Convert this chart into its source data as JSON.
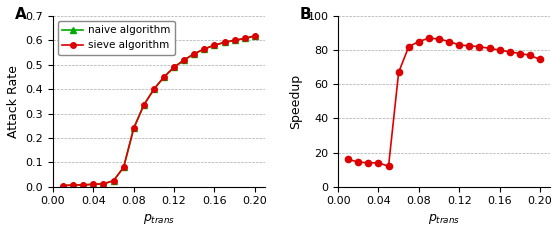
{
  "ptrans_A": [
    0.01,
    0.02,
    0.03,
    0.04,
    0.05,
    0.06,
    0.07,
    0.08,
    0.09,
    0.1,
    0.11,
    0.12,
    0.13,
    0.14,
    0.15,
    0.16,
    0.17,
    0.18,
    0.19,
    0.2
  ],
  "attack_rate_naive": [
    0.005,
    0.007,
    0.008,
    0.01,
    0.012,
    0.025,
    0.08,
    0.24,
    0.335,
    0.4,
    0.45,
    0.49,
    0.52,
    0.545,
    0.565,
    0.58,
    0.592,
    0.6,
    0.608,
    0.618
  ],
  "attack_rate_sieve": [
    0.005,
    0.007,
    0.008,
    0.01,
    0.012,
    0.025,
    0.08,
    0.24,
    0.335,
    0.4,
    0.45,
    0.49,
    0.52,
    0.545,
    0.565,
    0.58,
    0.592,
    0.6,
    0.608,
    0.618
  ],
  "ptrans_B": [
    0.01,
    0.02,
    0.03,
    0.04,
    0.05,
    0.06,
    0.07,
    0.08,
    0.09,
    0.1,
    0.11,
    0.12,
    0.13,
    0.14,
    0.15,
    0.16,
    0.17,
    0.18,
    0.19,
    0.2
  ],
  "speedup": [
    16.0,
    14.5,
    14.0,
    14.0,
    12.0,
    67.0,
    82.0,
    85.0,
    87.0,
    86.5,
    85.0,
    83.0,
    82.5,
    82.0,
    81.0,
    80.0,
    79.0,
    78.0,
    77.0,
    74.5
  ],
  "color_naive": "#00aa00",
  "color_sieve": "#dd0000",
  "color_speedup": "#dd0000",
  "panel_A_label": "A",
  "panel_B_label": "B",
  "ylabel_A": "Attack Rate",
  "ylabel_B": "Speedup",
  "xlabel_A": "p_trans",
  "xlabel_B": "p_trans",
  "legend_naive": "naive algorithm",
  "legend_sieve": "sieve algorithm",
  "ylim_A": [
    0,
    0.7
  ],
  "ylim_B": [
    0,
    100
  ],
  "xlim_A": [
    0,
    0.21
  ],
  "xlim_B": [
    0,
    0.21
  ],
  "yticks_A": [
    0.0,
    0.1,
    0.2,
    0.3,
    0.4,
    0.5,
    0.6,
    0.7
  ],
  "yticks_B": [
    0,
    20,
    40,
    60,
    80,
    100
  ],
  "xticks": [
    0.0,
    0.04,
    0.08,
    0.12,
    0.16,
    0.2
  ],
  "bg_color": "#ffffff",
  "grid_color": "#aaaaaa"
}
